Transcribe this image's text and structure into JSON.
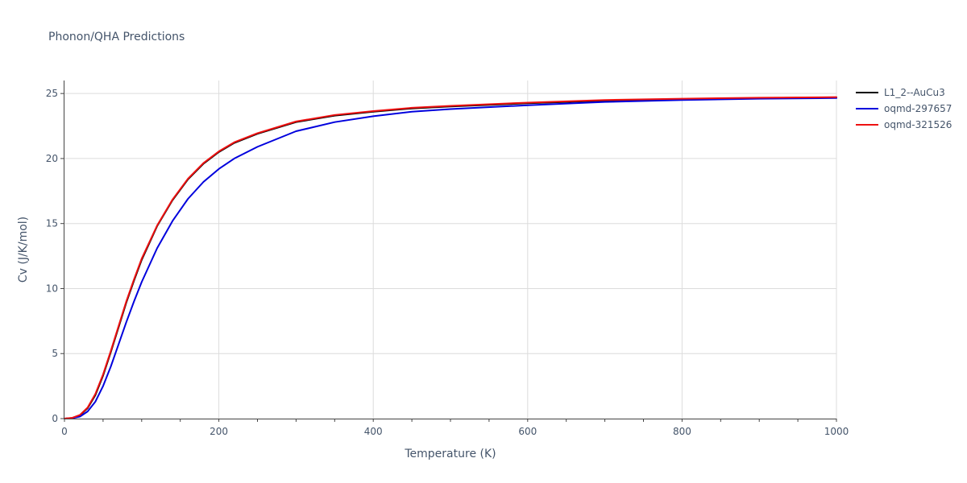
{
  "chart_data": {
    "type": "line",
    "title": "Phonon/QHA Predictions",
    "xlabel": "Temperature (K)",
    "ylabel": "Cv (J/K/mol)",
    "xlim": [
      0,
      1000
    ],
    "ylim": [
      0,
      26
    ],
    "xticks": [
      0,
      200,
      400,
      600,
      800,
      1000
    ],
    "yticks": [
      0,
      5,
      10,
      15,
      20,
      25
    ],
    "grid": true,
    "legend_position": "top-right",
    "series": [
      {
        "name": "L1_2--AuCu3",
        "color": "#000000",
        "x": [
          0,
          10,
          20,
          30,
          40,
          50,
          60,
          70,
          80,
          90,
          100,
          120,
          140,
          160,
          180,
          200,
          220,
          250,
          300,
          350,
          400,
          450,
          500,
          600,
          700,
          800,
          900,
          1000
        ],
        "y": [
          0,
          0.05,
          0.25,
          0.8,
          1.8,
          3.3,
          5.1,
          7.0,
          8.9,
          10.6,
          12.2,
          14.8,
          16.8,
          18.4,
          19.6,
          20.5,
          21.2,
          21.9,
          22.8,
          23.3,
          23.6,
          23.85,
          24.0,
          24.25,
          24.45,
          24.55,
          24.65,
          24.7
        ]
      },
      {
        "name": "oqmd-297657",
        "color": "#0000dd",
        "x": [
          0,
          10,
          20,
          30,
          40,
          50,
          60,
          70,
          80,
          90,
          100,
          120,
          140,
          160,
          180,
          200,
          220,
          250,
          300,
          350,
          400,
          450,
          500,
          600,
          700,
          800,
          900,
          1000
        ],
        "y": [
          0,
          0.03,
          0.15,
          0.55,
          1.3,
          2.5,
          4.0,
          5.7,
          7.4,
          9.0,
          10.5,
          13.1,
          15.2,
          16.9,
          18.2,
          19.2,
          20.0,
          20.9,
          22.1,
          22.8,
          23.25,
          23.6,
          23.8,
          24.1,
          24.35,
          24.5,
          24.6,
          24.65
        ]
      },
      {
        "name": "oqmd-321526",
        "color": "#ee1111",
        "x": [
          0,
          10,
          20,
          30,
          40,
          50,
          60,
          70,
          80,
          90,
          100,
          120,
          140,
          160,
          180,
          200,
          220,
          250,
          300,
          350,
          400,
          450,
          500,
          600,
          700,
          800,
          900,
          1000
        ],
        "y": [
          0,
          0.06,
          0.28,
          0.85,
          1.9,
          3.4,
          5.2,
          7.1,
          9.0,
          10.7,
          12.3,
          14.85,
          16.85,
          18.45,
          19.65,
          20.55,
          21.25,
          21.95,
          22.85,
          23.35,
          23.65,
          23.9,
          24.05,
          24.3,
          24.5,
          24.6,
          24.68,
          24.72
        ]
      }
    ]
  }
}
